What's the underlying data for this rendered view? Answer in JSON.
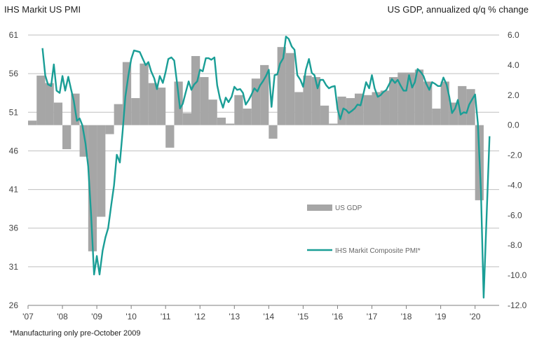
{
  "chart_data": {
    "type": "bar+line",
    "title_left": "IHS Markit US PMI",
    "title_right": "US GDP, annualized q/q % change",
    "footnote": "*Manufacturing only pre-October 2009",
    "x_tick_labels": [
      "'07",
      "'08",
      "'09",
      "'10",
      "'11",
      "'12",
      "'13",
      "'14",
      "'15",
      "'16",
      "'17",
      "'18",
      "'19",
      "'20"
    ],
    "left_axis": {
      "ticks": [
        61,
        56,
        51,
        46,
        41,
        36,
        31,
        26
      ],
      "tick_labels": [
        "61",
        "56",
        "51",
        "46",
        "41",
        "36",
        "31",
        "26"
      ],
      "range": [
        26,
        61
      ]
    },
    "right_axis": {
      "ticks": [
        6,
        4,
        2,
        0,
        -2,
        -4,
        -6,
        -8,
        -10,
        -12
      ],
      "tick_labels": [
        "6.0",
        "4.0",
        "2.0",
        "0.0",
        "-2.0",
        "-4.0",
        "-6.0",
        "-8.0",
        "-10.0",
        "-12.0"
      ],
      "range": [
        -12,
        6
      ]
    },
    "colors": {
      "bar": "#a6a6a6",
      "line": "#1a9e96",
      "grid": "#bfbfbf",
      "axis": "#7f7f7f"
    },
    "legend": [
      {
        "name": "US GDP",
        "kind": "bar"
      },
      {
        "name": "IHS Markit Composite PMI*",
        "kind": "line"
      }
    ],
    "gdp_quarters": [
      {
        "q": 2007.0,
        "v": 0.3
      },
      {
        "q": 2007.25,
        "v": 3.3
      },
      {
        "q": 2007.5,
        "v": 2.8
      },
      {
        "q": 2007.75,
        "v": 1.5
      },
      {
        "q": 2008.0,
        "v": -1.6
      },
      {
        "q": 2008.25,
        "v": 2.1
      },
      {
        "q": 2008.5,
        "v": -2.1
      },
      {
        "q": 2008.75,
        "v": -8.4
      },
      {
        "q": 2009.0,
        "v": -6.1
      },
      {
        "q": 2009.25,
        "v": -0.6
      },
      {
        "q": 2009.5,
        "v": 1.4
      },
      {
        "q": 2009.75,
        "v": 4.2
      },
      {
        "q": 2010.0,
        "v": 1.8
      },
      {
        "q": 2010.25,
        "v": 4.1
      },
      {
        "q": 2010.5,
        "v": 2.8
      },
      {
        "q": 2010.75,
        "v": 2.5
      },
      {
        "q": 2011.0,
        "v": -1.5
      },
      {
        "q": 2011.25,
        "v": 2.9
      },
      {
        "q": 2011.5,
        "v": 0.8
      },
      {
        "q": 2011.75,
        "v": 4.6
      },
      {
        "q": 2012.0,
        "v": 3.2
      },
      {
        "q": 2012.25,
        "v": 1.7
      },
      {
        "q": 2012.5,
        "v": 0.5
      },
      {
        "q": 2012.75,
        "v": 0.1
      },
      {
        "q": 2013.0,
        "v": 2.0
      },
      {
        "q": 2013.25,
        "v": 1.1
      },
      {
        "q": 2013.5,
        "v": 3.1
      },
      {
        "q": 2013.75,
        "v": 4.0
      },
      {
        "q": 2014.0,
        "v": -0.9
      },
      {
        "q": 2014.25,
        "v": 5.2
      },
      {
        "q": 2014.5,
        "v": 4.8
      },
      {
        "q": 2014.75,
        "v": 2.2
      },
      {
        "q": 2015.0,
        "v": 3.3
      },
      {
        "q": 2015.25,
        "v": 3.2
      },
      {
        "q": 2015.5,
        "v": 1.3
      },
      {
        "q": 2015.75,
        "v": 0.1
      },
      {
        "q": 2016.0,
        "v": 1.9
      },
      {
        "q": 2016.25,
        "v": 1.8
      },
      {
        "q": 2016.5,
        "v": 2.1
      },
      {
        "q": 2016.75,
        "v": 2.0
      },
      {
        "q": 2017.0,
        "v": 2.2
      },
      {
        "q": 2017.25,
        "v": 2.3
      },
      {
        "q": 2017.5,
        "v": 3.2
      },
      {
        "q": 2017.75,
        "v": 3.5
      },
      {
        "q": 2018.0,
        "v": 3.5
      },
      {
        "q": 2018.25,
        "v": 3.7
      },
      {
        "q": 2018.5,
        "v": 2.9
      },
      {
        "q": 2018.75,
        "v": 1.1
      },
      {
        "q": 2019.0,
        "v": 2.9
      },
      {
        "q": 2019.25,
        "v": 1.5
      },
      {
        "q": 2019.5,
        "v": 2.6
      },
      {
        "q": 2019.75,
        "v": 2.4
      },
      {
        "q": 2020.0,
        "v": -5.0
      }
    ],
    "pmi_monthly": [
      {
        "t": 2007.42,
        "v": 59.3
      },
      {
        "t": 2007.5,
        "v": 55.8
      },
      {
        "t": 2007.58,
        "v": 54.6
      },
      {
        "t": 2007.67,
        "v": 54.4
      },
      {
        "t": 2007.75,
        "v": 57.2
      },
      {
        "t": 2007.83,
        "v": 53.8
      },
      {
        "t": 2007.92,
        "v": 53.5
      },
      {
        "t": 2008.0,
        "v": 55.7
      },
      {
        "t": 2008.08,
        "v": 53.8
      },
      {
        "t": 2008.17,
        "v": 55.6
      },
      {
        "t": 2008.25,
        "v": 54.0
      },
      {
        "t": 2008.33,
        "v": 52.5
      },
      {
        "t": 2008.42,
        "v": 49.9
      },
      {
        "t": 2008.5,
        "v": 50.2
      },
      {
        "t": 2008.58,
        "v": 49.3
      },
      {
        "t": 2008.67,
        "v": 47.0
      },
      {
        "t": 2008.75,
        "v": 44.0
      },
      {
        "t": 2008.83,
        "v": 38.0
      },
      {
        "t": 2008.92,
        "v": 30.0
      },
      {
        "t": 2009.0,
        "v": 32.4
      },
      {
        "t": 2009.08,
        "v": 30.0
      },
      {
        "t": 2009.17,
        "v": 33.1
      },
      {
        "t": 2009.25,
        "v": 34.8
      },
      {
        "t": 2009.33,
        "v": 36.0
      },
      {
        "t": 2009.42,
        "v": 39.0
      },
      {
        "t": 2009.5,
        "v": 41.5
      },
      {
        "t": 2009.58,
        "v": 45.5
      },
      {
        "t": 2009.67,
        "v": 44.5
      },
      {
        "t": 2009.75,
        "v": 48.5
      },
      {
        "t": 2009.83,
        "v": 53.0
      },
      {
        "t": 2009.92,
        "v": 55.8
      },
      {
        "t": 2010.0,
        "v": 57.9
      },
      {
        "t": 2010.08,
        "v": 59.0
      },
      {
        "t": 2010.17,
        "v": 58.9
      },
      {
        "t": 2010.25,
        "v": 58.8
      },
      {
        "t": 2010.33,
        "v": 58.0
      },
      {
        "t": 2010.42,
        "v": 57.1
      },
      {
        "t": 2010.5,
        "v": 57.5
      },
      {
        "t": 2010.58,
        "v": 56.3
      },
      {
        "t": 2010.67,
        "v": 55.4
      },
      {
        "t": 2010.75,
        "v": 54.0
      },
      {
        "t": 2010.83,
        "v": 55.7
      },
      {
        "t": 2010.92,
        "v": 54.8
      },
      {
        "t": 2011.0,
        "v": 56.2
      },
      {
        "t": 2011.08,
        "v": 57.9
      },
      {
        "t": 2011.17,
        "v": 58.1
      },
      {
        "t": 2011.25,
        "v": 57.7
      },
      {
        "t": 2011.33,
        "v": 54.9
      },
      {
        "t": 2011.42,
        "v": 51.5
      },
      {
        "t": 2011.5,
        "v": 52.1
      },
      {
        "t": 2011.58,
        "v": 53.5
      },
      {
        "t": 2011.67,
        "v": 55.0
      },
      {
        "t": 2011.75,
        "v": 53.9
      },
      {
        "t": 2011.83,
        "v": 54.6
      },
      {
        "t": 2011.92,
        "v": 55.0
      },
      {
        "t": 2012.0,
        "v": 56.5
      },
      {
        "t": 2012.08,
        "v": 56.3
      },
      {
        "t": 2012.17,
        "v": 58.0
      },
      {
        "t": 2012.25,
        "v": 58.0
      },
      {
        "t": 2012.33,
        "v": 57.8
      },
      {
        "t": 2012.42,
        "v": 58.1
      },
      {
        "t": 2012.5,
        "v": 54.5
      },
      {
        "t": 2012.58,
        "v": 52.8
      },
      {
        "t": 2012.67,
        "v": 51.6
      },
      {
        "t": 2012.75,
        "v": 52.9
      },
      {
        "t": 2012.83,
        "v": 52.3
      },
      {
        "t": 2012.92,
        "v": 53.0
      },
      {
        "t": 2013.0,
        "v": 54.3
      },
      {
        "t": 2013.08,
        "v": 53.9
      },
      {
        "t": 2013.17,
        "v": 54.0
      },
      {
        "t": 2013.25,
        "v": 53.5
      },
      {
        "t": 2013.33,
        "v": 52.0
      },
      {
        "t": 2013.42,
        "v": 52.6
      },
      {
        "t": 2013.5,
        "v": 53.3
      },
      {
        "t": 2013.58,
        "v": 54.1
      },
      {
        "t": 2013.67,
        "v": 53.7
      },
      {
        "t": 2013.75,
        "v": 54.5
      },
      {
        "t": 2013.83,
        "v": 55.0
      },
      {
        "t": 2013.92,
        "v": 55.7
      },
      {
        "t": 2014.0,
        "v": 56.5
      },
      {
        "t": 2014.08,
        "v": 51.7
      },
      {
        "t": 2014.17,
        "v": 55.8
      },
      {
        "t": 2014.25,
        "v": 55.9
      },
      {
        "t": 2014.33,
        "v": 57.3
      },
      {
        "t": 2014.42,
        "v": 58.0
      },
      {
        "t": 2014.5,
        "v": 60.8
      },
      {
        "t": 2014.58,
        "v": 60.5
      },
      {
        "t": 2014.67,
        "v": 59.5
      },
      {
        "t": 2014.75,
        "v": 59.1
      },
      {
        "t": 2014.83,
        "v": 55.8
      },
      {
        "t": 2014.92,
        "v": 55.2
      },
      {
        "t": 2015.0,
        "v": 54.3
      },
      {
        "t": 2015.08,
        "v": 56.5
      },
      {
        "t": 2015.17,
        "v": 57.9
      },
      {
        "t": 2015.25,
        "v": 56.1
      },
      {
        "t": 2015.33,
        "v": 55.8
      },
      {
        "t": 2015.42,
        "v": 54.1
      },
      {
        "t": 2015.5,
        "v": 55.2
      },
      {
        "t": 2015.58,
        "v": 55.2
      },
      {
        "t": 2015.67,
        "v": 54.5
      },
      {
        "t": 2015.75,
        "v": 54.1
      },
      {
        "t": 2015.83,
        "v": 54.3
      },
      {
        "t": 2015.92,
        "v": 54.4
      },
      {
        "t": 2016.0,
        "v": 51.4
      },
      {
        "t": 2016.08,
        "v": 50.1
      },
      {
        "t": 2016.17,
        "v": 51.5
      },
      {
        "t": 2016.25,
        "v": 51.3
      },
      {
        "t": 2016.33,
        "v": 50.9
      },
      {
        "t": 2016.42,
        "v": 51.2
      },
      {
        "t": 2016.5,
        "v": 51.5
      },
      {
        "t": 2016.58,
        "v": 52.0
      },
      {
        "t": 2016.67,
        "v": 51.9
      },
      {
        "t": 2016.75,
        "v": 53.3
      },
      {
        "t": 2016.83,
        "v": 54.9
      },
      {
        "t": 2016.92,
        "v": 54.1
      },
      {
        "t": 2017.0,
        "v": 55.8
      },
      {
        "t": 2017.08,
        "v": 54.1
      },
      {
        "t": 2017.17,
        "v": 53.0
      },
      {
        "t": 2017.25,
        "v": 53.2
      },
      {
        "t": 2017.33,
        "v": 53.6
      },
      {
        "t": 2017.42,
        "v": 53.9
      },
      {
        "t": 2017.5,
        "v": 54.6
      },
      {
        "t": 2017.58,
        "v": 55.3
      },
      {
        "t": 2017.67,
        "v": 54.8
      },
      {
        "t": 2017.75,
        "v": 55.2
      },
      {
        "t": 2017.83,
        "v": 54.5
      },
      {
        "t": 2017.92,
        "v": 53.8
      },
      {
        "t": 2018.0,
        "v": 53.8
      },
      {
        "t": 2018.08,
        "v": 55.8
      },
      {
        "t": 2018.17,
        "v": 54.2
      },
      {
        "t": 2018.25,
        "v": 54.9
      },
      {
        "t": 2018.33,
        "v": 56.6
      },
      {
        "t": 2018.42,
        "v": 56.2
      },
      {
        "t": 2018.5,
        "v": 55.7
      },
      {
        "t": 2018.58,
        "v": 54.7
      },
      {
        "t": 2018.67,
        "v": 53.9
      },
      {
        "t": 2018.75,
        "v": 54.9
      },
      {
        "t": 2018.83,
        "v": 54.7
      },
      {
        "t": 2018.92,
        "v": 54.4
      },
      {
        "t": 2019.0,
        "v": 54.4
      },
      {
        "t": 2019.08,
        "v": 55.5
      },
      {
        "t": 2019.17,
        "v": 54.6
      },
      {
        "t": 2019.25,
        "v": 53.0
      },
      {
        "t": 2019.33,
        "v": 50.9
      },
      {
        "t": 2019.42,
        "v": 51.5
      },
      {
        "t": 2019.5,
        "v": 52.6
      },
      {
        "t": 2019.58,
        "v": 50.7
      },
      {
        "t": 2019.67,
        "v": 51.0
      },
      {
        "t": 2019.75,
        "v": 50.9
      },
      {
        "t": 2019.83,
        "v": 52.0
      },
      {
        "t": 2019.92,
        "v": 52.7
      },
      {
        "t": 2020.0,
        "v": 53.3
      },
      {
        "t": 2020.08,
        "v": 49.6
      },
      {
        "t": 2020.17,
        "v": 40.9
      },
      {
        "t": 2020.25,
        "v": 27.0
      },
      {
        "t": 2020.33,
        "v": 37.0
      },
      {
        "t": 2020.42,
        "v": 47.9
      }
    ]
  }
}
